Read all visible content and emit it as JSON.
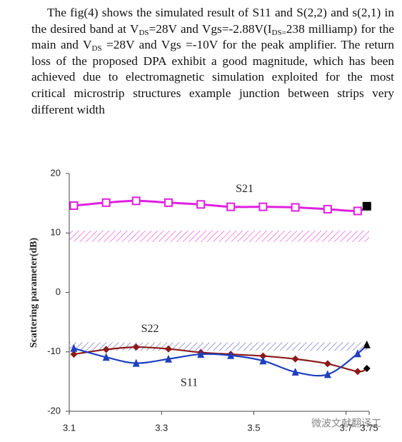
{
  "paragraph": [
    "The fig(4) shows the simulated result of S11 and S(2,2) and s(2,1) in the desired band  at V",
    {
      "sub": "DS"
    },
    "=28V and Vgs=-2.88V(I",
    {
      "sub": "DS="
    },
    "238 milliamp) for the main and V",
    {
      "sub": "DS"
    },
    " =28V and Vgs =-10V for the peak amplifier. The return loss of the proposed DPA exhibit a good magnitude, which has been achieved due to electromagnetic simulation exploited for the most critical microstrip structures example junction between strips very different width"
  ],
  "chart_data": {
    "type": "line",
    "ylabel": "Scattering parameter(dB)",
    "xlim": [
      3.1,
      3.75
    ],
    "xticks": [
      3.1,
      3.3,
      3.5,
      3.7,
      3.75
    ],
    "ylim": [
      -20,
      20
    ],
    "yticks": [
      -20,
      -10,
      0,
      10,
      20
    ],
    "x": [
      3.11,
      3.18,
      3.245,
      3.315,
      3.385,
      3.45,
      3.52,
      3.59,
      3.66,
      3.725,
      3.745
    ],
    "endpoint_color": "#000000",
    "bands": [
      {
        "from": 8.5,
        "to": 10.4,
        "color": "#f08ce0"
      },
      {
        "from": -8.4,
        "to": -9.8,
        "color": "#9c9cd8"
      }
    ],
    "series": [
      {
        "name": "S21",
        "color": "#e020e0",
        "marker": "square",
        "values": [
          14.6,
          15.1,
          15.4,
          15.1,
          14.8,
          14.4,
          14.4,
          14.3,
          14.0,
          13.7,
          14.5
        ]
      },
      {
        "name": "S22",
        "color": "#8b1a1a",
        "marker": "diamond",
        "values": [
          -10.4,
          -9.6,
          -9.2,
          -9.5,
          -10.1,
          -10.4,
          -10.7,
          -11.2,
          -12.0,
          -13.3,
          -12.8
        ]
      },
      {
        "name": "S11",
        "color": "#1f3fbf",
        "marker": "triangle",
        "values": [
          -9.4,
          -10.9,
          -11.9,
          -11.2,
          -10.4,
          -10.6,
          -11.5,
          -13.4,
          -13.8,
          -10.3,
          -8.8
        ]
      }
    ]
  },
  "watermark": "微波文献翻译工"
}
